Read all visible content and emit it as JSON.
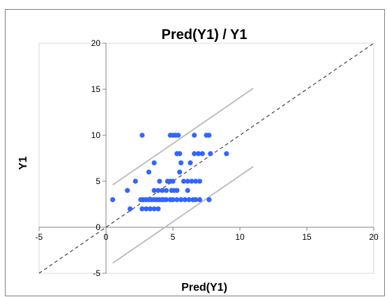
{
  "chart_data": {
    "type": "scatter",
    "title": "Pred(Y1) / Y1",
    "xlabel": "Pred(Y1)",
    "ylabel": "Y1",
    "xlim": [
      -5,
      20
    ],
    "ylim": [
      -5,
      20
    ],
    "xticks": [
      -5,
      0,
      5,
      10,
      15,
      20
    ],
    "yticks": [
      -5,
      0,
      5,
      10,
      15,
      20
    ],
    "xtick_labels": [
      "-5",
      "0",
      "5",
      "10",
      "15",
      "20"
    ],
    "ytick_labels": [
      "-5",
      "0",
      "5",
      "10",
      "15",
      "20"
    ],
    "grid": false,
    "legend": "none",
    "colors": {
      "points": "#3366ff",
      "reference_line": "#404040",
      "confidence_bands": "#bfbfbf",
      "axes": "#808080"
    },
    "reference_line": {
      "style": "dashed",
      "points": [
        [
          -5,
          -5
        ],
        [
          20,
          20
        ]
      ]
    },
    "confidence_bands": [
      {
        "name": "upper",
        "points": [
          [
            0.5,
            4.6
          ],
          [
            11,
            15.1
          ]
        ]
      },
      {
        "name": "lower",
        "points": [
          [
            0.5,
            -3.9
          ],
          [
            11,
            6.6
          ]
        ]
      }
    ],
    "points": [
      [
        0.5,
        3
      ],
      [
        1.6,
        4
      ],
      [
        1.8,
        2
      ],
      [
        2.2,
        5
      ],
      [
        2.6,
        3
      ],
      [
        2.8,
        3
      ],
      [
        3.0,
        3
      ],
      [
        3.2,
        3
      ],
      [
        3.4,
        3
      ],
      [
        3.6,
        3
      ],
      [
        3.8,
        3
      ],
      [
        4.0,
        3
      ],
      [
        4.2,
        3
      ],
      [
        4.5,
        3
      ],
      [
        4.8,
        3
      ],
      [
        5.0,
        3
      ],
      [
        5.3,
        3
      ],
      [
        5.6,
        3
      ],
      [
        5.9,
        3
      ],
      [
        6.2,
        3
      ],
      [
        6.5,
        3
      ],
      [
        6.7,
        3
      ],
      [
        7.0,
        3
      ],
      [
        7.7,
        3
      ],
      [
        2.7,
        2
      ],
      [
        3.0,
        2
      ],
      [
        3.3,
        2
      ],
      [
        3.6,
        2
      ],
      [
        3.9,
        2
      ],
      [
        2.7,
        10
      ],
      [
        4.8,
        10
      ],
      [
        5.0,
        10
      ],
      [
        5.2,
        10
      ],
      [
        5.4,
        10
      ],
      [
        6.6,
        10
      ],
      [
        7.5,
        10
      ],
      [
        7.7,
        10
      ],
      [
        3.2,
        6
      ],
      [
        3.6,
        7
      ],
      [
        3.6,
        4
      ],
      [
        3.9,
        4
      ],
      [
        4.2,
        4
      ],
      [
        4.5,
        4
      ],
      [
        4.0,
        5
      ],
      [
        4.6,
        5
      ],
      [
        4.8,
        5
      ],
      [
        4.9,
        4
      ],
      [
        5.1,
        4
      ],
      [
        5.3,
        4
      ],
      [
        5.5,
        6
      ],
      [
        5.6,
        7
      ],
      [
        5.8,
        5
      ],
      [
        6.1,
        4
      ],
      [
        6.4,
        5
      ],
      [
        6.7,
        5
      ],
      [
        7.0,
        5
      ],
      [
        6.3,
        7
      ],
      [
        5.3,
        8
      ],
      [
        5.5,
        8
      ],
      [
        6.6,
        8
      ],
      [
        6.9,
        8
      ],
      [
        7.2,
        8
      ],
      [
        7.8,
        8
      ],
      [
        9.0,
        8
      ],
      [
        6.1,
        5
      ],
      [
        4.3,
        3
      ],
      [
        5.0,
        5
      ]
    ]
  }
}
